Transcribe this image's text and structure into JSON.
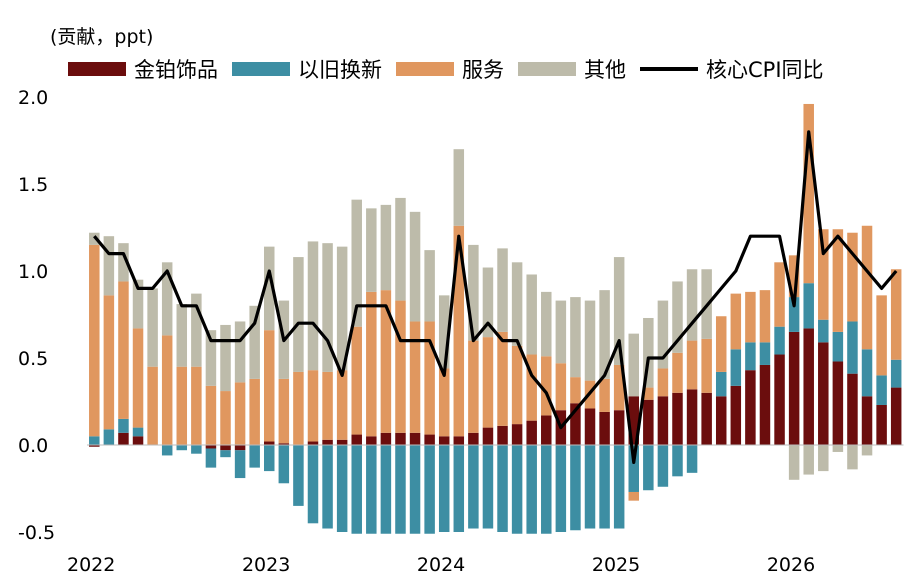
{
  "chart_data": {
    "type": "bar",
    "subtitle": "(贡献，ppt)",
    "stacked": true,
    "ylim": [
      -0.5,
      2.0
    ],
    "yticks": [
      "2.0",
      "1.5",
      "1.0",
      "0.5",
      "0.0",
      "-0.5"
    ],
    "ytick_values": [
      2.0,
      1.5,
      1.0,
      0.5,
      0.0,
      -0.5
    ],
    "xtick_labels": [
      "2022",
      "2023",
      "2024",
      "2025",
      "2026"
    ],
    "xtick_index": [
      0,
      12,
      24,
      36,
      48
    ],
    "colors": {
      "gold": "#6b0d0d",
      "tradein": "#3d8ea3",
      "services": "#e0975f",
      "other": "#bdbbaa",
      "line": "#000000"
    },
    "series": [
      {
        "name": "金铂饰品",
        "key": "gold",
        "values": [
          -0.01,
          0.0,
          0.07,
          0.05,
          0.0,
          0.0,
          0.0,
          0.0,
          -0.02,
          -0.03,
          -0.03,
          0.0,
          0.02,
          0.01,
          0.0,
          0.02,
          0.03,
          0.03,
          0.06,
          0.05,
          0.07,
          0.07,
          0.07,
          0.06,
          0.05,
          0.05,
          0.07,
          0.1,
          0.11,
          0.12,
          0.14,
          0.17,
          0.2,
          0.24,
          0.21,
          0.19,
          0.2,
          0.28,
          0.26,
          0.28,
          0.3,
          0.32,
          0.3,
          0.28,
          0.34,
          0.43,
          0.46,
          0.52,
          0.65,
          0.67,
          0.59,
          0.48,
          0.41,
          0.28,
          0.23,
          0.33
        ]
      },
      {
        "name": "以旧换新",
        "key": "tradein",
        "values": [
          0.05,
          0.09,
          0.08,
          0.05,
          0.0,
          -0.06,
          -0.03,
          -0.05,
          -0.11,
          -0.04,
          -0.16,
          -0.13,
          -0.15,
          -0.22,
          -0.35,
          -0.45,
          -0.48,
          -0.5,
          -0.51,
          -0.51,
          -0.51,
          -0.51,
          -0.51,
          -0.51,
          -0.5,
          -0.5,
          -0.48,
          -0.48,
          -0.5,
          -0.51,
          -0.51,
          -0.51,
          -0.5,
          -0.49,
          -0.48,
          -0.48,
          -0.48,
          -0.27,
          -0.26,
          -0.24,
          -0.18,
          -0.16,
          0.0,
          0.14,
          0.21,
          0.16,
          0.13,
          0.16,
          0.2,
          0.26,
          0.13,
          0.17,
          0.3,
          0.27,
          0.17,
          0.16
        ]
      },
      {
        "name": "服务",
        "key": "services",
        "values": [
          1.1,
          0.77,
          0.79,
          0.57,
          0.45,
          0.63,
          0.45,
          0.45,
          0.34,
          0.31,
          0.36,
          0.38,
          0.64,
          0.37,
          0.42,
          0.41,
          0.39,
          0.4,
          0.62,
          0.83,
          0.82,
          0.76,
          0.64,
          0.65,
          0.39,
          1.21,
          0.53,
          0.52,
          0.54,
          0.45,
          0.38,
          0.34,
          0.27,
          0.15,
          0.16,
          0.19,
          0.26,
          -0.05,
          0.07,
          0.16,
          0.23,
          0.28,
          0.31,
          0.32,
          0.32,
          0.29,
          0.3,
          0.37,
          0.24,
          1.03,
          0.52,
          0.59,
          0.51,
          0.71,
          0.46,
          0.52
        ]
      },
      {
        "name": "其他",
        "key": "other",
        "values": [
          0.07,
          0.34,
          0.22,
          0.28,
          0.45,
          0.42,
          0.36,
          0.42,
          0.32,
          0.38,
          0.35,
          0.42,
          0.48,
          0.45,
          0.66,
          0.74,
          0.74,
          0.71,
          0.73,
          0.48,
          0.49,
          0.59,
          0.63,
          0.41,
          0.42,
          0.44,
          0.55,
          0.4,
          0.48,
          0.48,
          0.46,
          0.37,
          0.36,
          0.46,
          0.46,
          0.51,
          0.62,
          0.36,
          0.4,
          0.39,
          0.41,
          0.41,
          0.4,
          0.0,
          0.0,
          0.0,
          0.0,
          0.0,
          -0.2,
          -0.17,
          -0.15,
          -0.04,
          -0.14,
          -0.06,
          0.0,
          0.0
        ]
      },
      {
        "name": "核心CPI同比",
        "key": "line",
        "type": "line",
        "values": [
          1.2,
          1.1,
          1.1,
          0.9,
          0.9,
          1.0,
          0.8,
          0.8,
          0.6,
          0.6,
          0.6,
          0.7,
          1.0,
          0.6,
          0.7,
          0.7,
          0.6,
          0.4,
          0.8,
          0.8,
          0.8,
          0.6,
          0.6,
          0.6,
          0.4,
          1.2,
          0.6,
          0.7,
          0.6,
          0.6,
          0.4,
          0.3,
          0.1,
          0.2,
          0.3,
          0.4,
          0.6,
          -0.1,
          0.5,
          0.5,
          0.6,
          0.7,
          0.8,
          0.9,
          1.0,
          1.2,
          1.2,
          1.2,
          0.8,
          1.8,
          1.1,
          1.2,
          1.1,
          1.0,
          0.9,
          1.0
        ]
      }
    ]
  }
}
